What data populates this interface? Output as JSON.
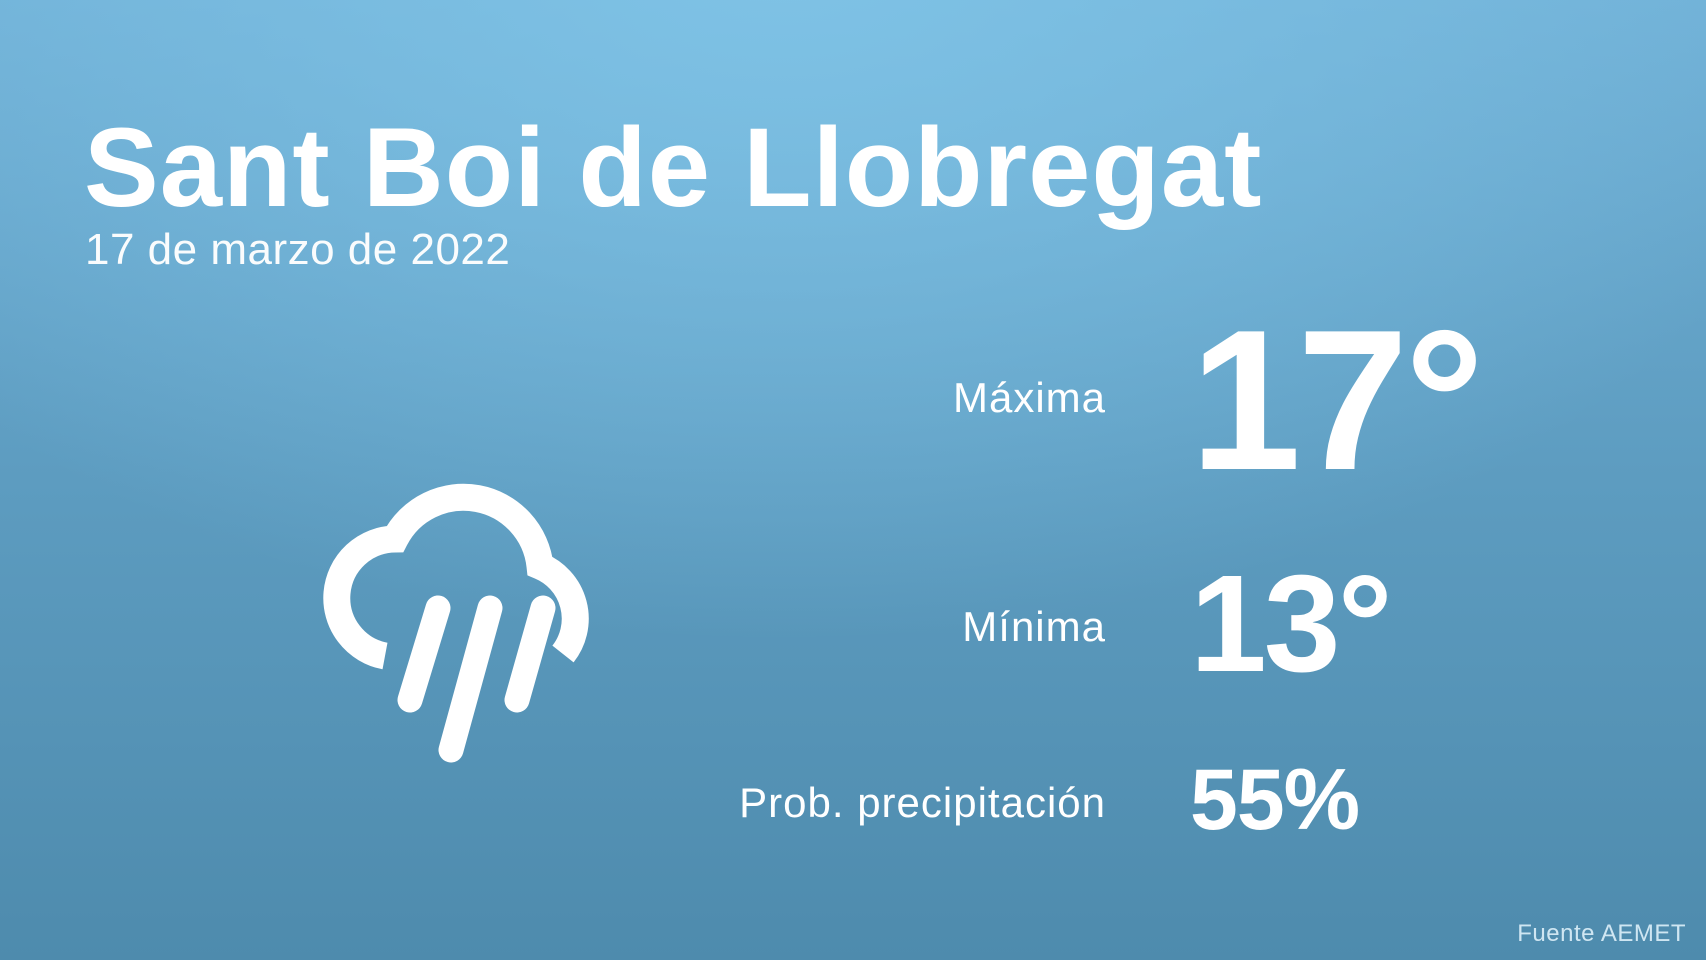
{
  "location": "Sant Boi de Llobregat",
  "date": "17 de marzo de 2022",
  "weather_icon": "cloud-rain-icon",
  "max": {
    "label": "Máxima",
    "value": "17°"
  },
  "min": {
    "label": "Mínima",
    "value": "13°"
  },
  "precip": {
    "label": "Prob. precipitación",
    "value": "55%"
  },
  "source": "Fuente AEMET",
  "colors": {
    "background_top": "#7fc3e6",
    "background_bottom": "#4e8bad",
    "text": "#ffffff"
  }
}
